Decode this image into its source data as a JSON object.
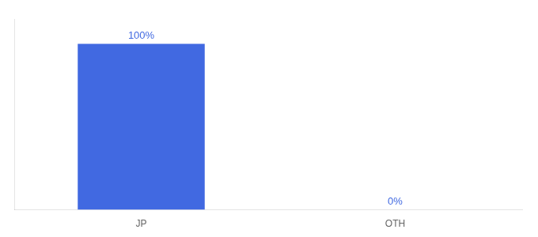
{
  "chart_data": {
    "type": "bar",
    "categories": [
      "JP",
      "OTH"
    ],
    "values": [
      100,
      0
    ],
    "value_labels": [
      "100%",
      "0%"
    ],
    "data_labels": true,
    "color": "#4169e1",
    "ylim": [
      0,
      115
    ],
    "grid": false,
    "tick_labels": "x"
  }
}
